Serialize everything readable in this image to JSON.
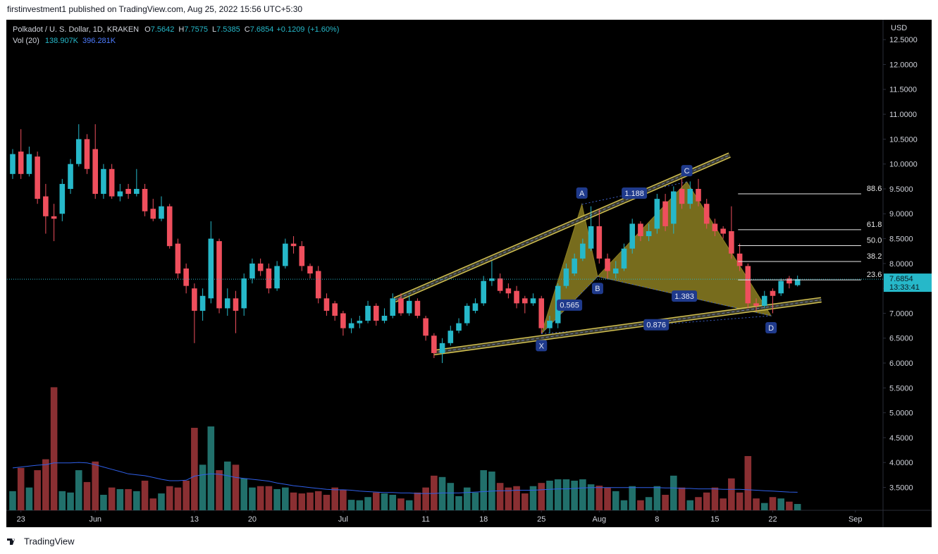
{
  "page": {
    "byline": "firstinvestment1 published on TradingView.com, Aug 25, 2022 15:56 UTC+5:30",
    "brand": "TradingView"
  },
  "chart_data": {
    "type": "candlestick",
    "title": "Polkadot / U. S. Dollar, 1D, KRAKEN",
    "legend_keys": [
      "O",
      "H",
      "L",
      "C"
    ],
    "change": "+0.1209",
    "change_pct": "(+1.60%)",
    "volume_title": "Vol (20)",
    "volume_label": "138.907K",
    "volume_ma_label": "396.281K",
    "y_axis_label": "USD",
    "countdown": "13:33:41",
    "up_color": "#26b8c9",
    "down_color": "#ef4f5d",
    "volume_up_color": "#21706b",
    "volume_down_color": "#8a2f32",
    "ma_color": "#2f5fe8",
    "pattern_color": "#8c7f22",
    "channel_color": "#d2c050",
    "open": [
      9.8,
      10.25,
      9.8,
      10.15,
      9.35,
      8.95,
      9.0,
      9.5,
      10.0,
      10.5,
      10.3,
      9.4,
      9.9,
      9.35,
      9.5,
      9.4,
      9.5,
      9.1,
      8.9,
      9.15,
      8.4,
      7.9,
      7.5,
      7.05,
      7.3,
      8.45,
      7.1,
      7.3,
      7.1,
      7.7,
      8.0,
      7.9,
      7.5,
      7.95,
      8.4,
      8.35,
      7.95,
      7.85,
      7.3,
      7.2,
      7.0,
      6.7,
      6.8,
      6.85,
      7.15,
      6.85,
      6.95,
      7.3,
      7.0,
      7.25,
      6.9,
      6.55,
      6.2,
      6.4,
      6.65,
      6.8,
      7.05,
      7.2,
      7.65,
      7.7,
      7.5,
      7.45,
      7.3,
      7.2,
      7.3,
      6.7,
      6.8,
      7.55,
      7.8,
      8.1,
      8.3,
      8.75,
      8.1,
      7.8,
      7.9,
      8.3,
      8.8,
      8.55,
      8.7,
      9.25,
      8.8,
      9.5,
      9.2,
      9.5,
      9.2,
      8.8,
      8.7,
      8.65,
      8.2,
      7.95,
      7.2,
      7.15,
      7.45,
      7.4,
      7.7,
      7.5642
    ],
    "high": [
      10.3,
      10.7,
      10.35,
      10.25,
      9.6,
      9.2,
      9.7,
      10.1,
      10.8,
      10.6,
      10.8,
      10.0,
      10.0,
      9.6,
      9.6,
      9.9,
      9.6,
      9.3,
      9.35,
      9.2,
      8.5,
      8.0,
      7.6,
      7.5,
      8.85,
      8.5,
      7.5,
      7.45,
      7.8,
      8.1,
      8.1,
      8.0,
      8.05,
      8.5,
      8.55,
      8.45,
      8.0,
      7.95,
      7.4,
      7.25,
      7.05,
      6.9,
      6.95,
      7.25,
      7.2,
      7.1,
      7.4,
      7.4,
      7.35,
      7.3,
      6.95,
      6.6,
      6.5,
      6.75,
      6.9,
      7.2,
      7.3,
      7.75,
      8.05,
      7.8,
      7.6,
      7.55,
      7.35,
      7.4,
      7.35,
      6.95,
      7.6,
      8.0,
      8.2,
      8.5,
      9.15,
      9.1,
      8.2,
      8.05,
      8.4,
      8.9,
      8.85,
      8.8,
      9.4,
      9.4,
      9.55,
      9.7,
      9.65,
      9.7,
      9.3,
      8.9,
      8.75,
      9.15,
      8.4,
      8.0,
      7.3,
      7.45,
      7.5,
      7.7,
      7.75,
      7.7575
    ],
    "low": [
      9.7,
      9.7,
      9.75,
      9.2,
      8.6,
      8.45,
      8.85,
      9.4,
      9.95,
      9.8,
      9.3,
      9.3,
      9.3,
      9.25,
      9.3,
      9.35,
      8.95,
      8.85,
      8.85,
      8.3,
      7.7,
      7.4,
      6.4,
      6.85,
      7.2,
      7.0,
      6.95,
      6.6,
      6.95,
      7.6,
      7.75,
      7.4,
      7.45,
      7.9,
      8.2,
      7.85,
      7.7,
      7.2,
      6.95,
      6.85,
      6.55,
      6.6,
      6.7,
      6.8,
      6.75,
      6.8,
      6.9,
      6.95,
      6.95,
      6.9,
      6.45,
      6.1,
      6.0,
      6.35,
      6.6,
      6.75,
      7.0,
      7.15,
      7.55,
      7.4,
      7.3,
      7.1,
      7.0,
      7.15,
      6.6,
      6.6,
      6.7,
      7.5,
      7.75,
      8.05,
      8.25,
      8.0,
      7.7,
      7.7,
      7.85,
      8.2,
      8.45,
      8.45,
      8.6,
      8.65,
      8.6,
      9.1,
      9.1,
      9.15,
      8.7,
      8.55,
      8.5,
      8.1,
      7.85,
      7.1,
      7.05,
      7.1,
      7.0,
      7.35,
      7.5,
      7.5385
    ],
    "close": [
      10.2,
      9.8,
      10.2,
      9.3,
      8.95,
      8.9,
      9.6,
      10.0,
      10.5,
      9.9,
      9.4,
      9.9,
      9.35,
      9.45,
      9.4,
      9.5,
      9.05,
      8.9,
      9.15,
      8.35,
      7.8,
      7.55,
      7.05,
      7.35,
      8.5,
      7.1,
      7.3,
      7.05,
      7.7,
      8.0,
      7.85,
      7.5,
      7.95,
      8.4,
      8.35,
      7.95,
      7.8,
      7.3,
      7.05,
      6.95,
      6.7,
      6.8,
      6.85,
      7.15,
      6.85,
      6.95,
      7.3,
      7.0,
      7.25,
      6.95,
      6.55,
      6.2,
      6.4,
      6.65,
      6.8,
      7.15,
      7.2,
      7.65,
      7.7,
      7.45,
      7.4,
      7.2,
      7.2,
      7.3,
      6.7,
      6.85,
      7.55,
      7.9,
      8.1,
      8.4,
      8.75,
      8.1,
      7.85,
      7.9,
      8.3,
      8.8,
      8.55,
      8.65,
      9.3,
      8.75,
      9.45,
      9.2,
      9.5,
      9.25,
      8.8,
      8.65,
      8.6,
      8.2,
      7.95,
      7.2,
      7.15,
      7.35,
      7.35,
      7.65,
      7.6,
      7.6854
    ],
    "volume": [
      420000,
      930000,
      500000,
      880000,
      1120000,
      2700000,
      420000,
      390000,
      880000,
      620000,
      1070000,
      340000,
      500000,
      465000,
      465000,
      420000,
      650000,
      260000,
      370000,
      530000,
      500000,
      650000,
      1810000,
      1000000,
      1840000,
      880000,
      1070000,
      1000000,
      700000,
      500000,
      530000,
      530000,
      465000,
      500000,
      390000,
      370000,
      390000,
      420000,
      340000,
      500000,
      450000,
      230000,
      220000,
      290000,
      390000,
      370000,
      340000,
      260000,
      220000,
      390000,
      500000,
      760000,
      730000,
      600000,
      310000,
      500000,
      390000,
      880000,
      850000,
      600000,
      500000,
      530000,
      370000,
      530000,
      600000,
      650000,
      680000,
      680000,
      650000,
      680000,
      570000,
      540000,
      500000,
      420000,
      220000,
      530000,
      220000,
      290000,
      530000,
      340000,
      760000,
      500000,
      220000,
      290000,
      390000,
      500000,
      260000,
      700000,
      390000,
      1190000,
      260000,
      160000,
      290000,
      260000,
      190000,
      138907
    ],
    "volume_ma": [
      930000,
      950000,
      970000,
      990000,
      1000000,
      1040000,
      1040000,
      1040000,
      1050000,
      1040000,
      1000000,
      950000,
      900000,
      850000,
      800000,
      780000,
      760000,
      720000,
      680000,
      650000,
      650000,
      660000,
      750000,
      780000,
      800000,
      790000,
      760000,
      720000,
      700000,
      680000,
      660000,
      640000,
      600000,
      570000,
      540000,
      520000,
      500000,
      480000,
      460000,
      450000,
      450000,
      440000,
      420000,
      410000,
      400000,
      390000,
      390000,
      380000,
      380000,
      370000,
      370000,
      370000,
      380000,
      380000,
      380000,
      390000,
      400000,
      410000,
      420000,
      430000,
      430000,
      440000,
      440000,
      440000,
      450000,
      460000,
      470000,
      470000,
      480000,
      490000,
      500000,
      500000,
      500000,
      500000,
      500000,
      500000,
      500000,
      500000,
      500000,
      490000,
      490000,
      480000,
      480000,
      470000,
      470000,
      470000,
      460000,
      460000,
      460000,
      450000,
      440000,
      430000,
      420000,
      410000,
      400000,
      396281
    ],
    "volume_ylim": [
      0,
      3000000
    ],
    "xlim": [
      -0.68,
      105.35
    ],
    "xticks": [
      {
        "value": 1,
        "label": "23"
      },
      {
        "value": 10,
        "label": "Jun"
      },
      {
        "value": 22,
        "label": "13"
      },
      {
        "value": 29,
        "label": "20"
      },
      {
        "value": 40,
        "label": "Jul"
      },
      {
        "value": 50,
        "label": "11"
      },
      {
        "value": 57,
        "label": "18"
      },
      {
        "value": 64,
        "label": "25"
      },
      {
        "value": 71,
        "label": "Aug"
      },
      {
        "value": 78,
        "label": "8"
      },
      {
        "value": 85,
        "label": "15"
      },
      {
        "value": 92,
        "label": "22"
      },
      {
        "value": 102,
        "label": "Sep"
      }
    ],
    "ylim": [
      3.04,
      12.9
    ],
    "yticks": [
      {
        "value": 12.5,
        "label": "12.5000"
      },
      {
        "value": 12.0,
        "label": "12.0000"
      },
      {
        "value": 11.5,
        "label": "11.5000"
      },
      {
        "value": 11.0,
        "label": "11.0000"
      },
      {
        "value": 10.5,
        "label": "10.5000"
      },
      {
        "value": 10.0,
        "label": "10.0000"
      },
      {
        "value": 9.5,
        "label": "9.5000"
      },
      {
        "value": 9.0,
        "label": "9.0000"
      },
      {
        "value": 8.5,
        "label": "8.5000"
      },
      {
        "value": 8.0,
        "label": "8.0000"
      },
      {
        "value": 7.5,
        "label": "7.5000"
      },
      {
        "value": 7.0,
        "label": "7.0000"
      },
      {
        "value": 6.5,
        "label": "6.5000"
      },
      {
        "value": 6.0,
        "label": "6.0000"
      },
      {
        "value": 5.5,
        "label": "5.5000"
      },
      {
        "value": 5.0,
        "label": "5.0000"
      },
      {
        "value": 4.5,
        "label": "4.5000"
      },
      {
        "value": 4.0,
        "label": "4.0000"
      },
      {
        "value": 3.5,
        "label": "3.5000"
      }
    ],
    "grid": false,
    "fib_span": [
      87.8,
      102.7
    ],
    "fib_levels": [
      {
        "label": "88.6",
        "price": 9.4
      },
      {
        "label": "61.8",
        "price": 8.68
      },
      {
        "label": "50.0",
        "price": 8.36
      },
      {
        "label": "38.2",
        "price": 8.04
      },
      {
        "label": "23.6",
        "price": 7.67
      }
    ],
    "pattern_points": [
      {
        "label": "X",
        "x": 64.0,
        "price": 6.59
      },
      {
        "label": "A",
        "x": 68.9,
        "price": 9.19
      },
      {
        "label": "B",
        "x": 70.8,
        "price": 7.74
      },
      {
        "label": "C",
        "x": 81.6,
        "price": 9.64
      },
      {
        "label": "D",
        "x": 91.8,
        "price": 6.95
      }
    ],
    "pattern_ratios": [
      "0.565",
      "1.188",
      "1.383",
      "0.876"
    ],
    "trend_lines": [
      {
        "x": [
          46.25,
          86.78
        ],
        "price": [
          7.27,
          10.18
        ]
      },
      {
        "x": [
          50.94,
          97.87
        ],
        "price": [
          6.21,
          7.27
        ]
      }
    ]
  }
}
